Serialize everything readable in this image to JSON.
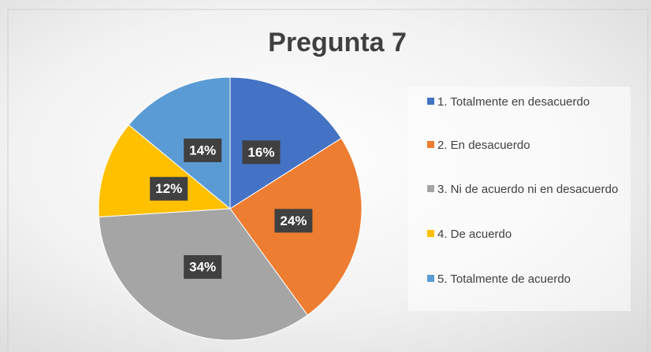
{
  "chart_data": {
    "type": "pie",
    "title": "Pregunta 7",
    "categories": [
      "1. Totalmente en desacuerdo",
      "2. En desacuerdo",
      "3. Ni de acuerdo ni en desacuerdo",
      "4. De acuerdo",
      "5. Totalmente de acuerdo"
    ],
    "values": [
      16,
      24,
      34,
      12,
      14
    ],
    "value_labels": [
      "16%",
      "24%",
      "34%",
      "12%",
      "14%"
    ],
    "colors": [
      "#4472c4",
      "#ed7d31",
      "#a5a5a5",
      "#ffc000",
      "#5b9bd5"
    ],
    "legend": "right"
  }
}
